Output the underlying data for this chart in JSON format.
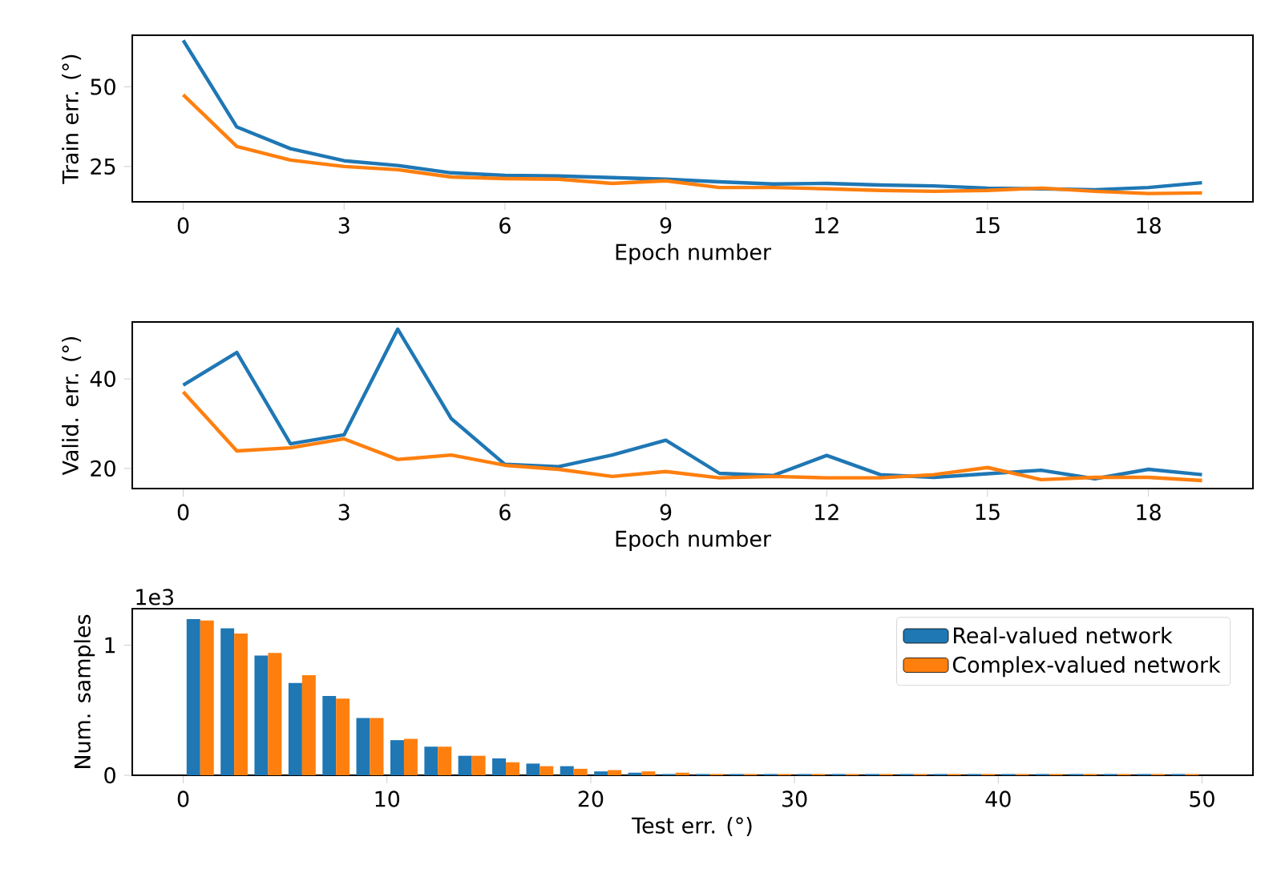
{
  "chart_data": [
    {
      "type": "line",
      "xlabel": "Epoch number",
      "ylabel": "Train err. (°)",
      "x": [
        0,
        1,
        2,
        3,
        4,
        5,
        6,
        7,
        8,
        9,
        10,
        11,
        12,
        13,
        14,
        15,
        16,
        17,
        18,
        19
      ],
      "xlim": [
        -0.95,
        19.95
      ],
      "xticks": [
        0,
        3,
        6,
        9,
        12,
        15,
        18
      ],
      "ylim": [
        13.9,
        66.2
      ],
      "yticks": [
        25,
        50
      ],
      "series": [
        {
          "color": "#1f77b4",
          "values": [
            64.6,
            37.4,
            30.6,
            26.8,
            25.3,
            23.0,
            22.2,
            22.0,
            21.5,
            21.0,
            20.2,
            19.5,
            19.7,
            19.2,
            18.9,
            18.2,
            18.0,
            17.7,
            18.4,
            19.9
          ]
        },
        {
          "color": "#ff7f0e",
          "values": [
            47.5,
            31.3,
            27.0,
            25.0,
            24.0,
            21.7,
            21.2,
            21.0,
            19.7,
            20.5,
            18.4,
            18.4,
            18.0,
            17.5,
            17.2,
            17.5,
            18.2,
            17.2,
            16.5,
            16.7
          ]
        }
      ]
    },
    {
      "type": "line",
      "xlabel": "Epoch number",
      "ylabel": "Valid. err. (°)",
      "x": [
        0,
        1,
        2,
        3,
        4,
        5,
        6,
        7,
        8,
        9,
        10,
        11,
        12,
        13,
        14,
        15,
        16,
        17,
        18,
        19
      ],
      "xlim": [
        -0.95,
        19.95
      ],
      "xticks": [
        0,
        3,
        6,
        9,
        12,
        15,
        18
      ],
      "ylim": [
        15.5,
        52.7
      ],
      "yticks": [
        20,
        40
      ],
      "series": [
        {
          "color": "#1f77b4",
          "values": [
            38.6,
            45.9,
            25.5,
            27.5,
            51.1,
            31.1,
            20.9,
            20.4,
            23.0,
            26.3,
            18.9,
            18.4,
            22.9,
            18.6,
            18.0,
            18.8,
            19.6,
            17.7,
            19.8,
            18.6
          ]
        },
        {
          "color": "#ff7f0e",
          "values": [
            37.1,
            23.9,
            24.6,
            26.6,
            22.0,
            23.0,
            20.7,
            19.8,
            18.2,
            19.3,
            17.9,
            18.2,
            17.9,
            17.9,
            18.6,
            20.2,
            17.5,
            18.0,
            18.0,
            17.3
          ]
        }
      ]
    },
    {
      "type": "histogram",
      "xlabel": "Test err. (°)",
      "ylabel": "Num. samples",
      "annotations": [
        "1e3"
      ],
      "legend": "top right",
      "bins": [
        0,
        1.67,
        3.33,
        5,
        6.67,
        8.33,
        10,
        11.67,
        13.33,
        15,
        16.67,
        18.33,
        20,
        21.67,
        23.33,
        25,
        26.67,
        28.33,
        30,
        31.67,
        33.33,
        35,
        36.67,
        38.33,
        40,
        41.67,
        43.33,
        45,
        46.67,
        48.33,
        50
      ],
      "xlim": [
        -2.5,
        52.5
      ],
      "xticks": [
        0,
        10,
        20,
        30,
        40,
        50
      ],
      "ylim": [
        0,
        1.28
      ],
      "yticks": [
        0,
        1
      ],
      "series": [
        {
          "name": "Real-valued network",
          "color": "#1f77b4",
          "values": [
            1.2,
            1.13,
            0.92,
            0.71,
            0.61,
            0.44,
            0.27,
            0.22,
            0.15,
            0.13,
            0.09,
            0.07,
            0.03,
            0.02,
            0.01,
            0.01,
            0.01,
            0.01,
            0.01,
            0.01,
            0.01,
            0.01,
            0.01,
            0.01,
            0.01,
            0.01,
            0.01,
            0.01,
            0.01,
            0.01
          ]
        },
        {
          "name": "Complex-valued network",
          "color": "#ff7f0e",
          "values": [
            1.19,
            1.09,
            0.94,
            0.77,
            0.59,
            0.44,
            0.28,
            0.22,
            0.15,
            0.1,
            0.07,
            0.05,
            0.04,
            0.03,
            0.02,
            0.01,
            0.01,
            0.01,
            0.01,
            0.01,
            0.01,
            0.01,
            0.01,
            0.01,
            0.01,
            0.01,
            0.01,
            0.01,
            0.01,
            0.01
          ]
        }
      ]
    }
  ]
}
